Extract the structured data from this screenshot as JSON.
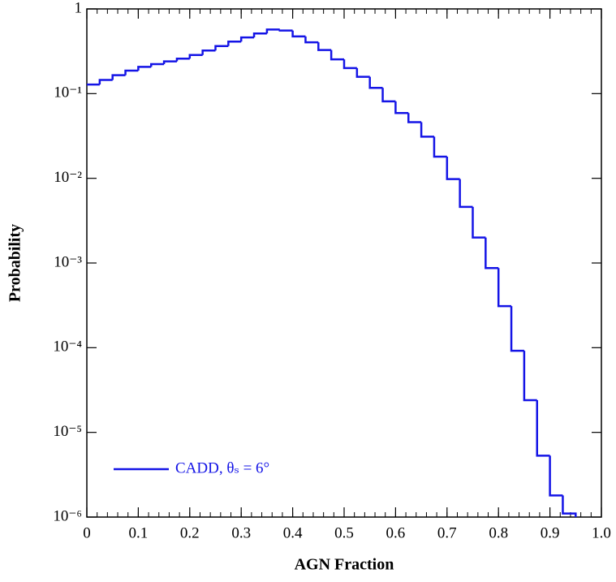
{
  "chart_data": {
    "type": "histogram",
    "x_label": "AGN Fraction",
    "y_label": "Probability",
    "log_y": true,
    "legend_position": "lower-left",
    "xlim": [
      0,
      1
    ],
    "ylim": [
      1e-06,
      1
    ],
    "xticks": [
      0,
      0.1,
      0.2,
      0.3,
      0.4,
      0.5,
      0.6,
      0.7,
      0.8,
      0.9,
      {
        "value": 1,
        "label": "1.0"
      }
    ],
    "yticks": [
      {
        "value": 1e-06,
        "label": "10⁻⁶"
      },
      {
        "value": 1e-05,
        "label": "10⁻⁵"
      },
      {
        "value": 0.0001,
        "label": "10⁻⁴"
      },
      {
        "value": 0.001,
        "label": "10⁻³"
      },
      {
        "value": 0.01,
        "label": "10⁻²"
      },
      {
        "value": 0.1,
        "label": "10⁻¹"
      },
      1
    ],
    "bins": [
      0,
      0.025,
      0.05,
      0.075,
      0.1,
      0.125,
      0.15,
      0.175,
      0.2,
      0.225,
      0.25,
      0.275,
      0.3,
      0.325,
      0.35,
      0.375,
      0.4,
      0.425,
      0.45,
      0.475,
      0.5,
      0.525,
      0.55,
      0.575,
      0.6,
      0.625,
      0.65,
      0.675,
      0.7,
      0.725,
      0.75,
      0.775,
      0.8,
      0.825,
      0.85,
      0.875,
      0.9,
      0.925,
      0.95
    ],
    "series": [
      {
        "name": "CADD, θₛ = 6°",
        "color": "#1414e6",
        "values": [
          0.128,
          0.145,
          0.165,
          0.187,
          0.207,
          0.223,
          0.24,
          0.259,
          0.286,
          0.323,
          0.364,
          0.411,
          0.46,
          0.513,
          0.571,
          0.556,
          0.473,
          0.403,
          0.327,
          0.254,
          0.2,
          0.158,
          0.117,
          0.081,
          0.059,
          0.046,
          0.031,
          0.018,
          0.0098,
          0.0046,
          0.002,
          0.00087,
          0.00031,
          9.2e-05,
          2.4e-05,
          5.3e-06,
          1.8e-06,
          1.1e-06
        ]
      }
    ]
  }
}
